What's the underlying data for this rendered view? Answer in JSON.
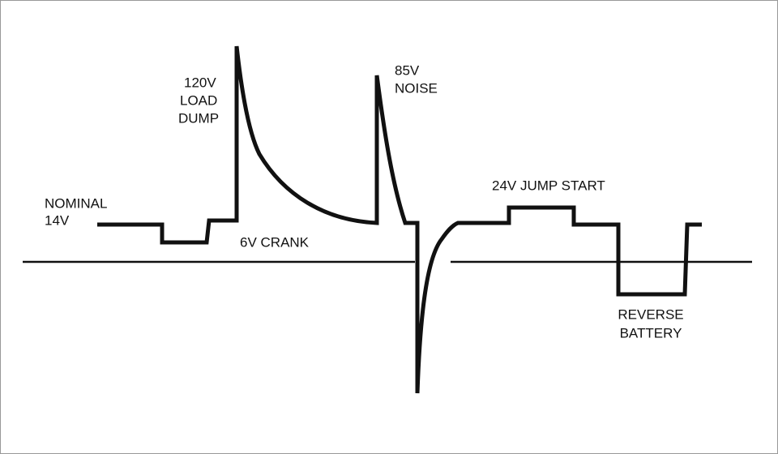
{
  "labels": {
    "nominal": [
      "NOMINAL",
      "14V"
    ],
    "load_dump": [
      "120V",
      "LOAD",
      "DUMP"
    ],
    "noise": [
      "85V",
      "NOISE"
    ],
    "crank": "6V CRANK",
    "jump_start": "24V JUMP START",
    "reverse_battery": [
      "REVERSE",
      "BATTERY"
    ]
  }
}
